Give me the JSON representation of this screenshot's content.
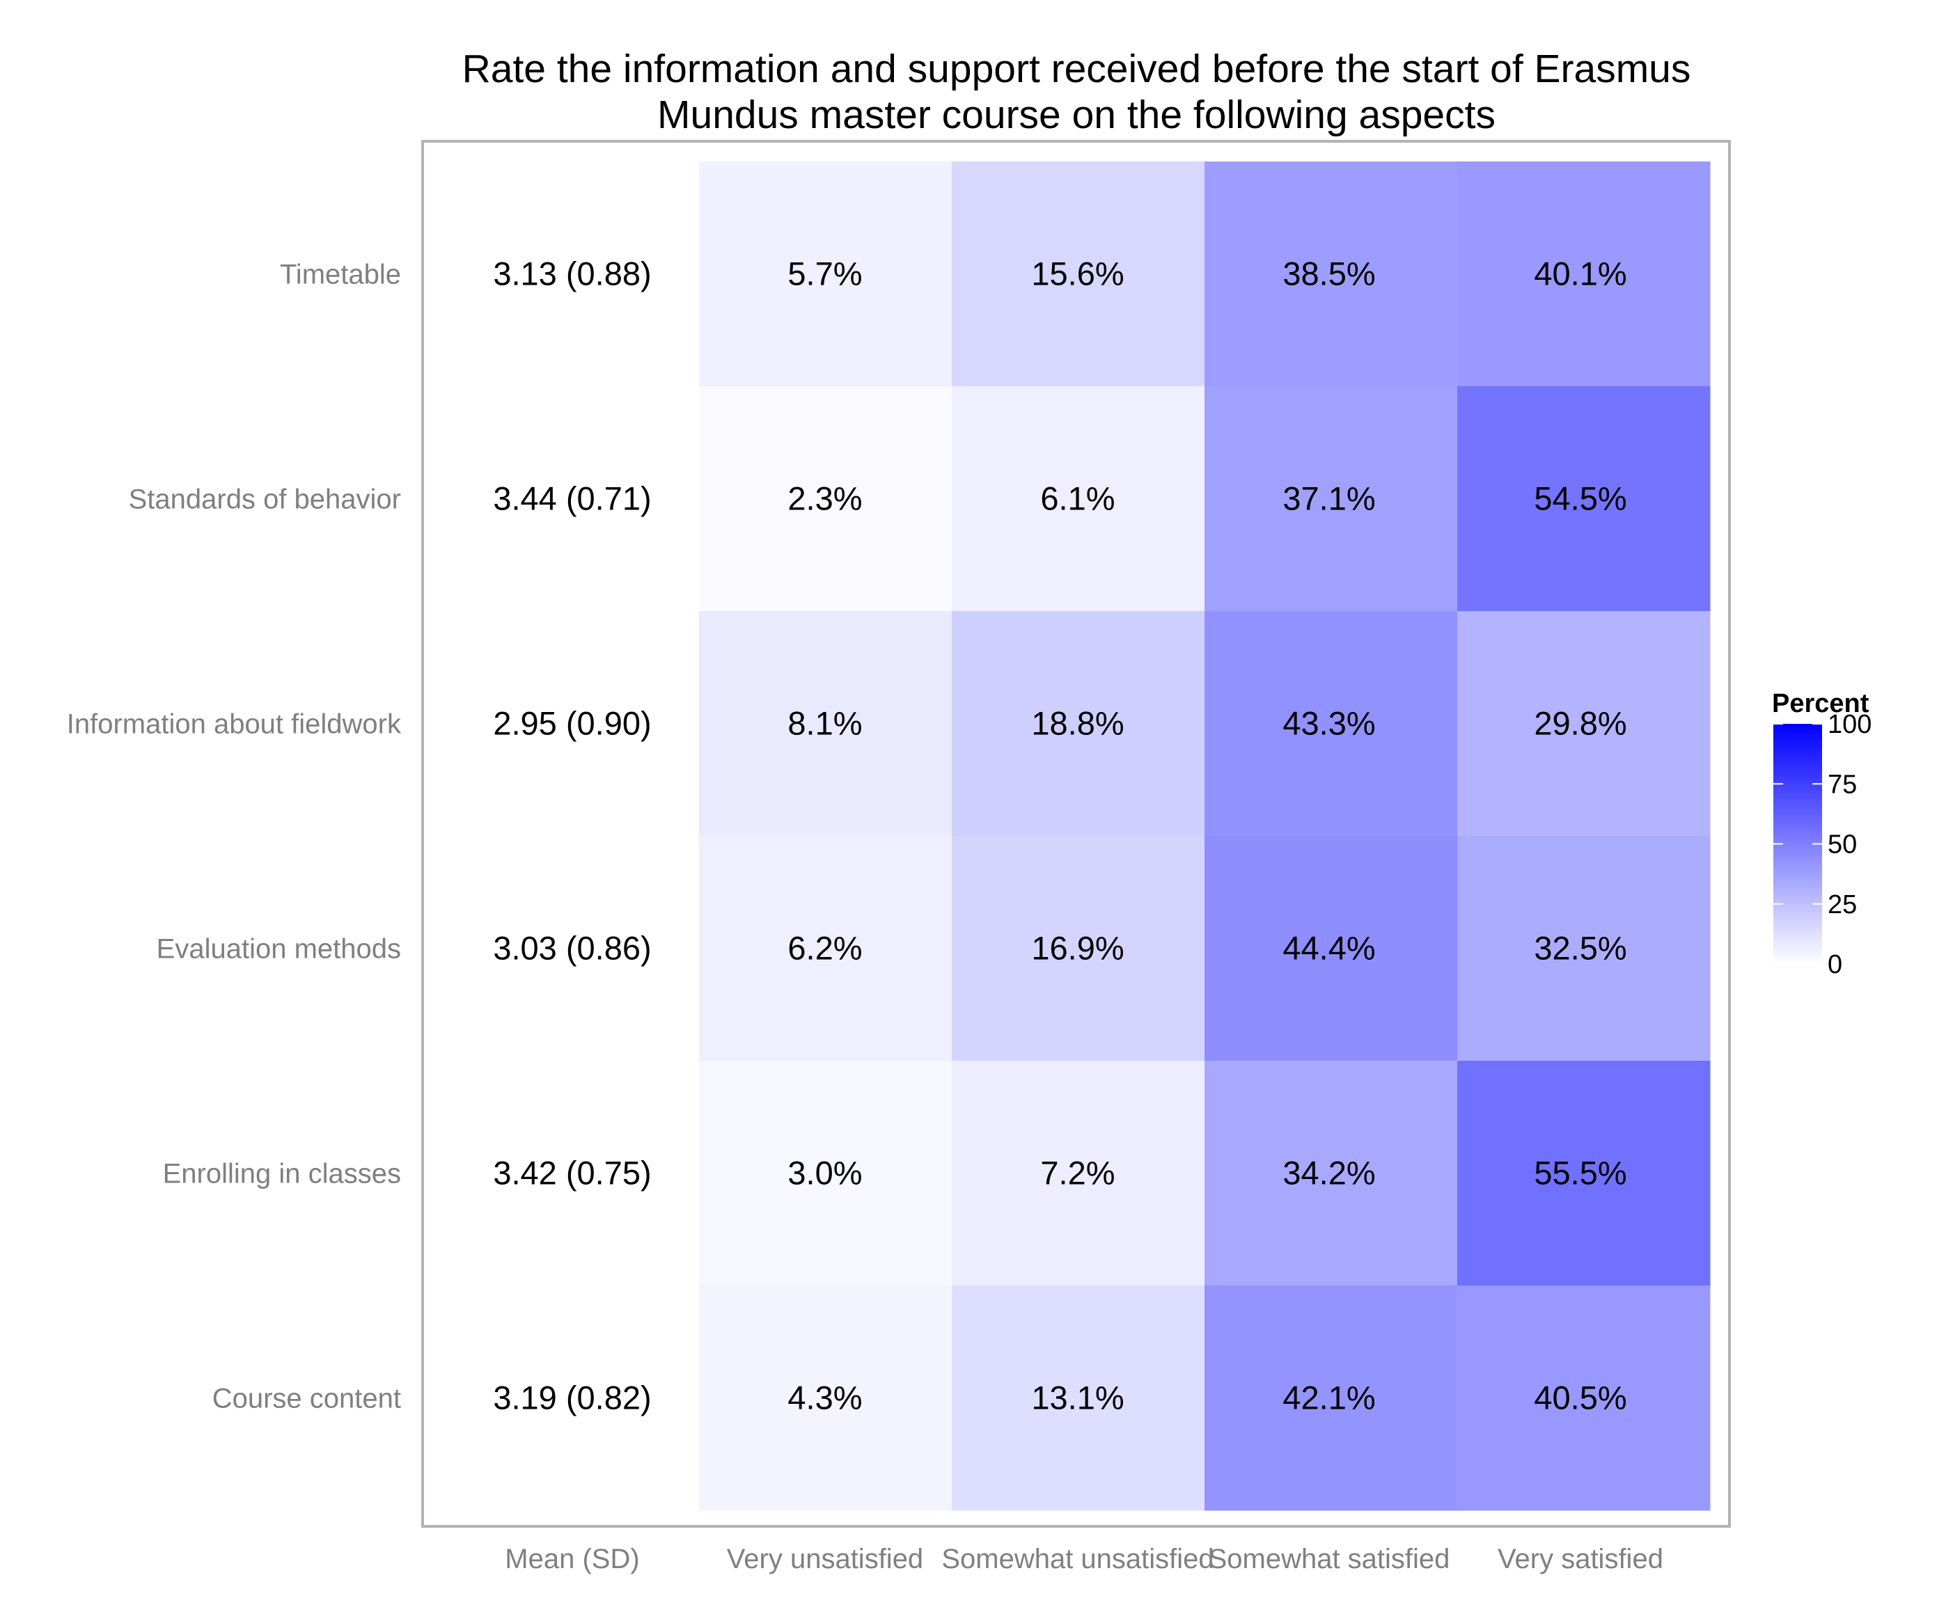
{
  "chart_data": {
    "type": "heatmap",
    "title": [
      "Rate the information and support received before the start of Erasmus",
      "Mundus master course on the following aspects"
    ],
    "columns": [
      "Mean (SD)",
      "Very unsatisfied",
      "Somewhat unsatisfied",
      "Somewhat satisfied",
      "Very satisfied"
    ],
    "rows": [
      "Timetable",
      "Standards of behavior",
      "Information about fieldwork",
      "Evaluation methods",
      "Enrolling in classes",
      "Course content"
    ],
    "mean_sd": [
      "3.13 (0.88)",
      "3.44 (0.71)",
      "2.95 (0.90)",
      "3.03 (0.86)",
      "3.42 (0.75)",
      "3.19 (0.82)"
    ],
    "values": [
      [
        5.7,
        15.6,
        38.5,
        40.1
      ],
      [
        2.3,
        6.1,
        37.1,
        54.5
      ],
      [
        8.1,
        18.8,
        43.3,
        29.8
      ],
      [
        6.2,
        16.9,
        44.4,
        32.5
      ],
      [
        3.0,
        7.2,
        34.2,
        55.5
      ],
      [
        4.3,
        13.1,
        42.1,
        40.5
      ]
    ],
    "value_labels": [
      [
        "5.7%",
        "15.6%",
        "38.5%",
        "40.1%"
      ],
      [
        "2.3%",
        "6.1%",
        "37.1%",
        "54.5%"
      ],
      [
        "8.1%",
        "18.8%",
        "43.3%",
        "29.8%"
      ],
      [
        "6.2%",
        "16.9%",
        "44.4%",
        "32.5%"
      ],
      [
        "3.0%",
        "7.2%",
        "34.2%",
        "55.5%"
      ],
      [
        "4.3%",
        "13.1%",
        "42.1%",
        "40.5%"
      ]
    ],
    "legend": {
      "title": "Percent",
      "range": [
        0,
        100
      ],
      "ticks": [
        "100",
        "75",
        "50",
        "25",
        "0"
      ],
      "low_color": "#ffffff",
      "high_color": "#0000ff"
    }
  }
}
